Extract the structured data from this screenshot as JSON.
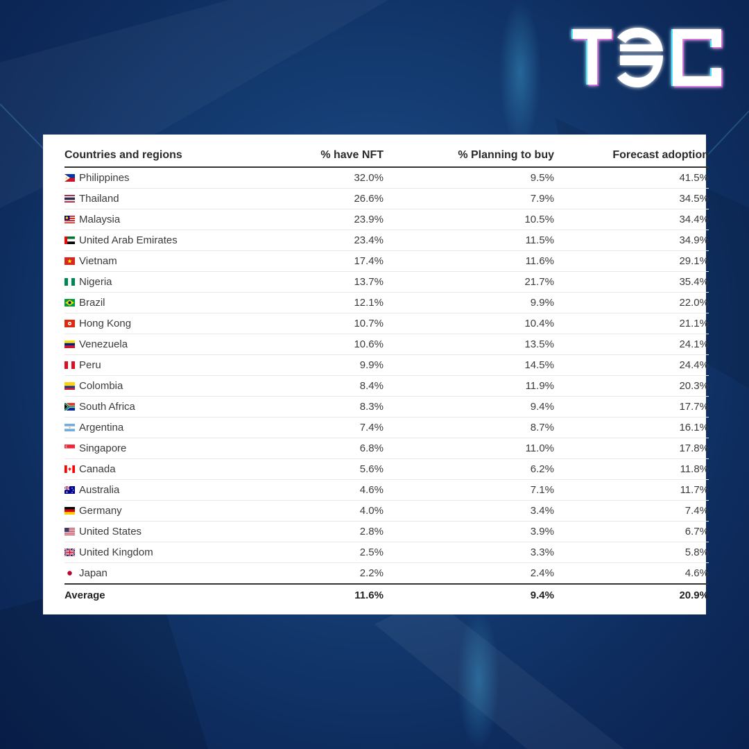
{
  "brand": {
    "logo_text": "TƏC",
    "logo_color": "#ffffff",
    "glow_color": "#4fe6ff",
    "accent_color": "#ff3df0"
  },
  "colors": {
    "background": "#153e75",
    "card": "#ffffff",
    "text": "#3a3a3a",
    "rule": "#333333"
  },
  "table": {
    "headers": [
      "Countries and regions",
      "% have NFT",
      "% Planning to buy",
      "Forecast adoption"
    ],
    "rows": [
      {
        "country": "Philippines",
        "flag": "philippines-flag-icon",
        "nft": "32.0%",
        "plan": "9.5%",
        "forecast": "41.5%"
      },
      {
        "country": "Thailand",
        "flag": "thailand-flag-icon",
        "nft": "26.6%",
        "plan": "7.9%",
        "forecast": "34.5%"
      },
      {
        "country": "Malaysia",
        "flag": "malaysia-flag-icon",
        "nft": "23.9%",
        "plan": "10.5%",
        "forecast": "34.4%"
      },
      {
        "country": "United Arab Emirates",
        "flag": "uae-flag-icon",
        "nft": "23.4%",
        "plan": "11.5%",
        "forecast": "34.9%"
      },
      {
        "country": "Vietnam",
        "flag": "vietnam-flag-icon",
        "nft": "17.4%",
        "plan": "11.6%",
        "forecast": "29.1%"
      },
      {
        "country": "Nigeria",
        "flag": "nigeria-flag-icon",
        "nft": "13.7%",
        "plan": "21.7%",
        "forecast": "35.4%"
      },
      {
        "country": "Brazil",
        "flag": "brazil-flag-icon",
        "nft": "12.1%",
        "plan": "9.9%",
        "forecast": "22.0%"
      },
      {
        "country": "Hong Kong",
        "flag": "hong-kong-flag-icon",
        "nft": "10.7%",
        "plan": "10.4%",
        "forecast": "21.1%"
      },
      {
        "country": "Venezuela",
        "flag": "venezuela-flag-icon",
        "nft": "10.6%",
        "plan": "13.5%",
        "forecast": "24.1%"
      },
      {
        "country": "Peru",
        "flag": "peru-flag-icon",
        "nft": "9.9%",
        "plan": "14.5%",
        "forecast": "24.4%"
      },
      {
        "country": "Colombia",
        "flag": "colombia-flag-icon",
        "nft": "8.4%",
        "plan": "11.9%",
        "forecast": "20.3%"
      },
      {
        "country": "South Africa",
        "flag": "south-africa-flag-icon",
        "nft": "8.3%",
        "plan": "9.4%",
        "forecast": "17.7%"
      },
      {
        "country": "Argentina",
        "flag": "argentina-flag-icon",
        "nft": "7.4%",
        "plan": "8.7%",
        "forecast": "16.1%"
      },
      {
        "country": "Singapore",
        "flag": "singapore-flag-icon",
        "nft": "6.8%",
        "plan": "11.0%",
        "forecast": "17.8%"
      },
      {
        "country": "Canada",
        "flag": "canada-flag-icon",
        "nft": "5.6%",
        "plan": "6.2%",
        "forecast": "11.8%"
      },
      {
        "country": "Australia",
        "flag": "australia-flag-icon",
        "nft": "4.6%",
        "plan": "7.1%",
        "forecast": "11.7%"
      },
      {
        "country": "Germany",
        "flag": "germany-flag-icon",
        "nft": "4.0%",
        "plan": "3.4%",
        "forecast": "7.4%"
      },
      {
        "country": "United States",
        "flag": "united-states-flag-icon",
        "nft": "2.8%",
        "plan": "3.9%",
        "forecast": "6.7%"
      },
      {
        "country": "United Kingdom",
        "flag": "united-kingdom-flag-icon",
        "nft": "2.5%",
        "plan": "3.3%",
        "forecast": "5.8%"
      },
      {
        "country": "Japan",
        "flag": "japan-flag-icon",
        "nft": "2.2%",
        "plan": "2.4%",
        "forecast": "4.6%"
      }
    ],
    "average": {
      "label": "Average",
      "nft": "11.6%",
      "plan": "9.4%",
      "forecast": "20.9%"
    }
  },
  "chart_data": {
    "type": "table",
    "columns": [
      "Countries and regions",
      "% have NFT",
      "% Planning to buy",
      "Forecast adoption"
    ],
    "rows": [
      [
        "Philippines",
        32.0,
        9.5,
        41.5
      ],
      [
        "Thailand",
        26.6,
        7.9,
        34.5
      ],
      [
        "Malaysia",
        23.9,
        10.5,
        34.4
      ],
      [
        "United Arab Emirates",
        23.4,
        11.5,
        34.9
      ],
      [
        "Vietnam",
        17.4,
        11.6,
        29.1
      ],
      [
        "Nigeria",
        13.7,
        21.7,
        35.4
      ],
      [
        "Brazil",
        12.1,
        9.9,
        22.0
      ],
      [
        "Hong Kong",
        10.7,
        10.4,
        21.1
      ],
      [
        "Venezuela",
        10.6,
        13.5,
        24.1
      ],
      [
        "Peru",
        9.9,
        14.5,
        24.4
      ],
      [
        "Colombia",
        8.4,
        11.9,
        20.3
      ],
      [
        "South Africa",
        8.3,
        9.4,
        17.7
      ],
      [
        "Argentina",
        7.4,
        8.7,
        16.1
      ],
      [
        "Singapore",
        6.8,
        11.0,
        17.8
      ],
      [
        "Canada",
        5.6,
        6.2,
        11.8
      ],
      [
        "Australia",
        4.6,
        7.1,
        11.7
      ],
      [
        "Germany",
        4.0,
        3.4,
        7.4
      ],
      [
        "United States",
        2.8,
        3.9,
        6.7
      ],
      [
        "United Kingdom",
        2.5,
        3.3,
        5.8
      ],
      [
        "Japan",
        2.2,
        2.4,
        4.6
      ]
    ],
    "footer": [
      "Average",
      11.6,
      9.4,
      20.9
    ]
  }
}
